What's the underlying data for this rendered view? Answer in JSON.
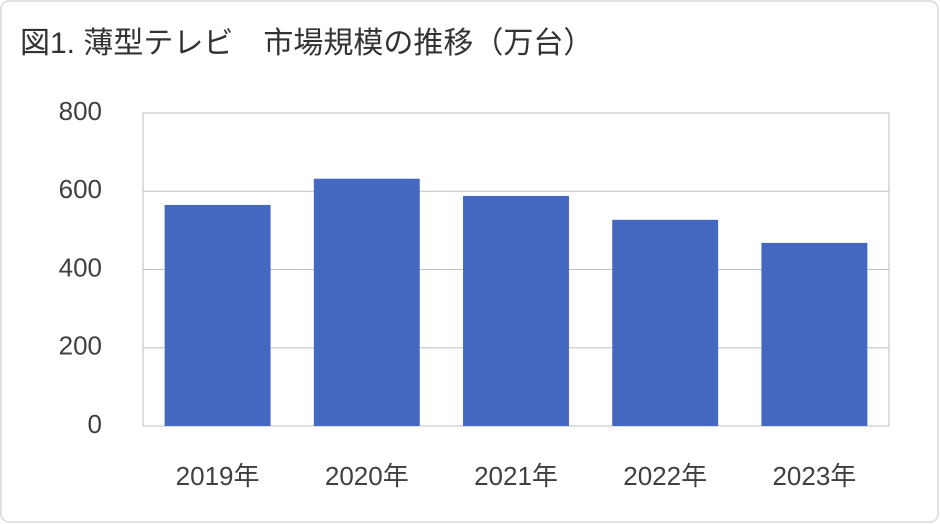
{
  "chart_data": {
    "type": "bar",
    "title": "図1. 薄型テレビ　市場規模の推移（万台）",
    "categories": [
      "2019年",
      "2020年",
      "2021年",
      "2022年",
      "2023年"
    ],
    "values": [
      565,
      632,
      588,
      527,
      468
    ],
    "color": "#4468bf",
    "ylim": [
      0,
      800
    ],
    "yticks": [
      0,
      200,
      400,
      600,
      800
    ],
    "grid": true
  }
}
